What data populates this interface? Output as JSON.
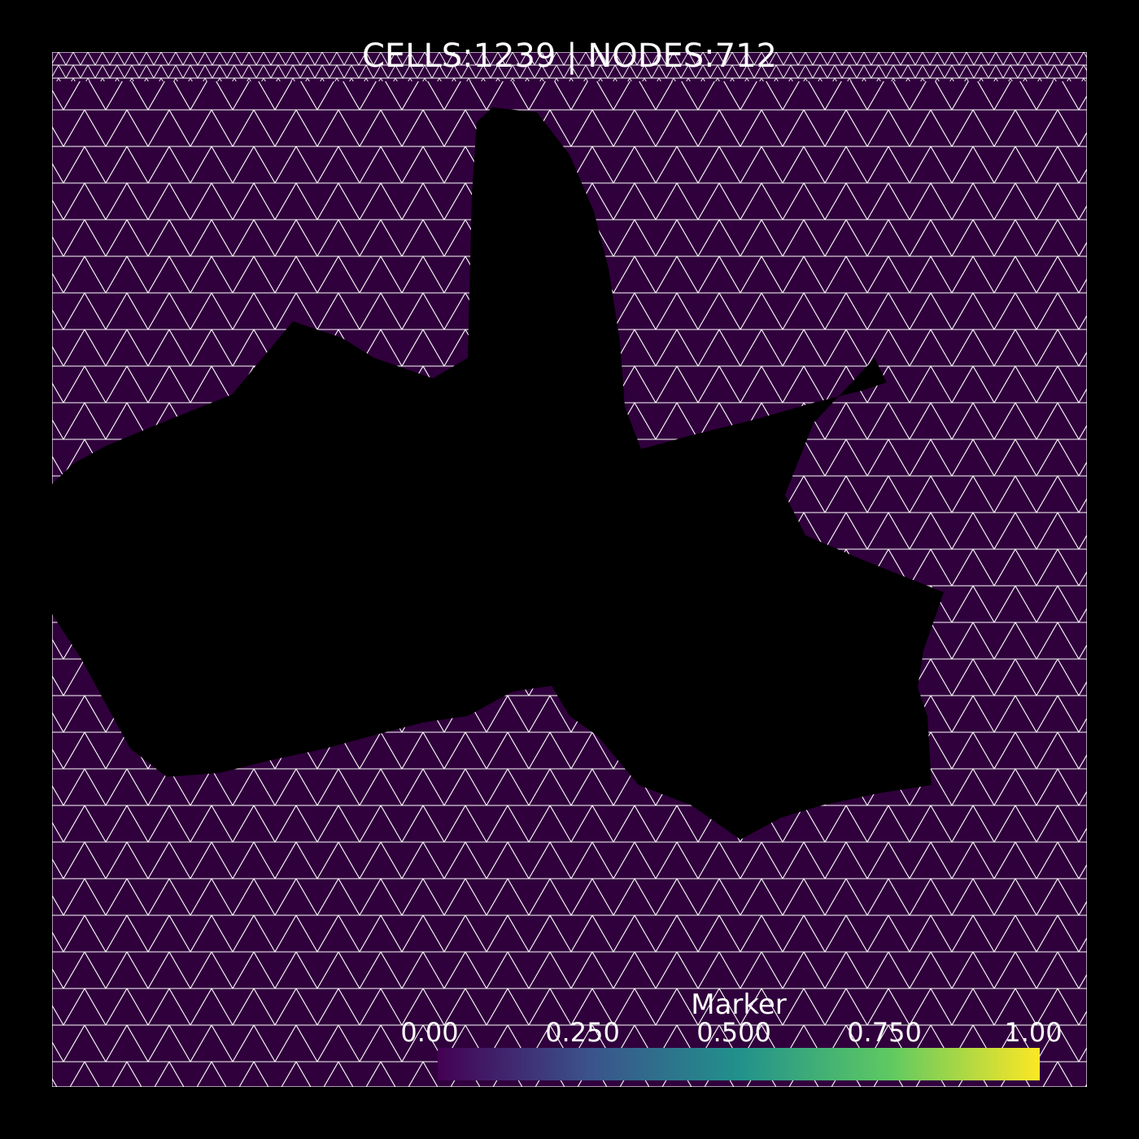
{
  "stats": {
    "title": "CELLS:1239  | NODES:712"
  },
  "colorbar": {
    "title": "Marker",
    "ticks": [
      "0.00",
      "0.250",
      "0.500",
      "0.750",
      "1.00"
    ],
    "colormap": [
      "#440154",
      "#3b528b",
      "#21918c",
      "#5ec962",
      "#fde725"
    ]
  },
  "mesh": {
    "fill_color": "#30003c",
    "edge_color": "#ffffff",
    "background": "#000000"
  }
}
